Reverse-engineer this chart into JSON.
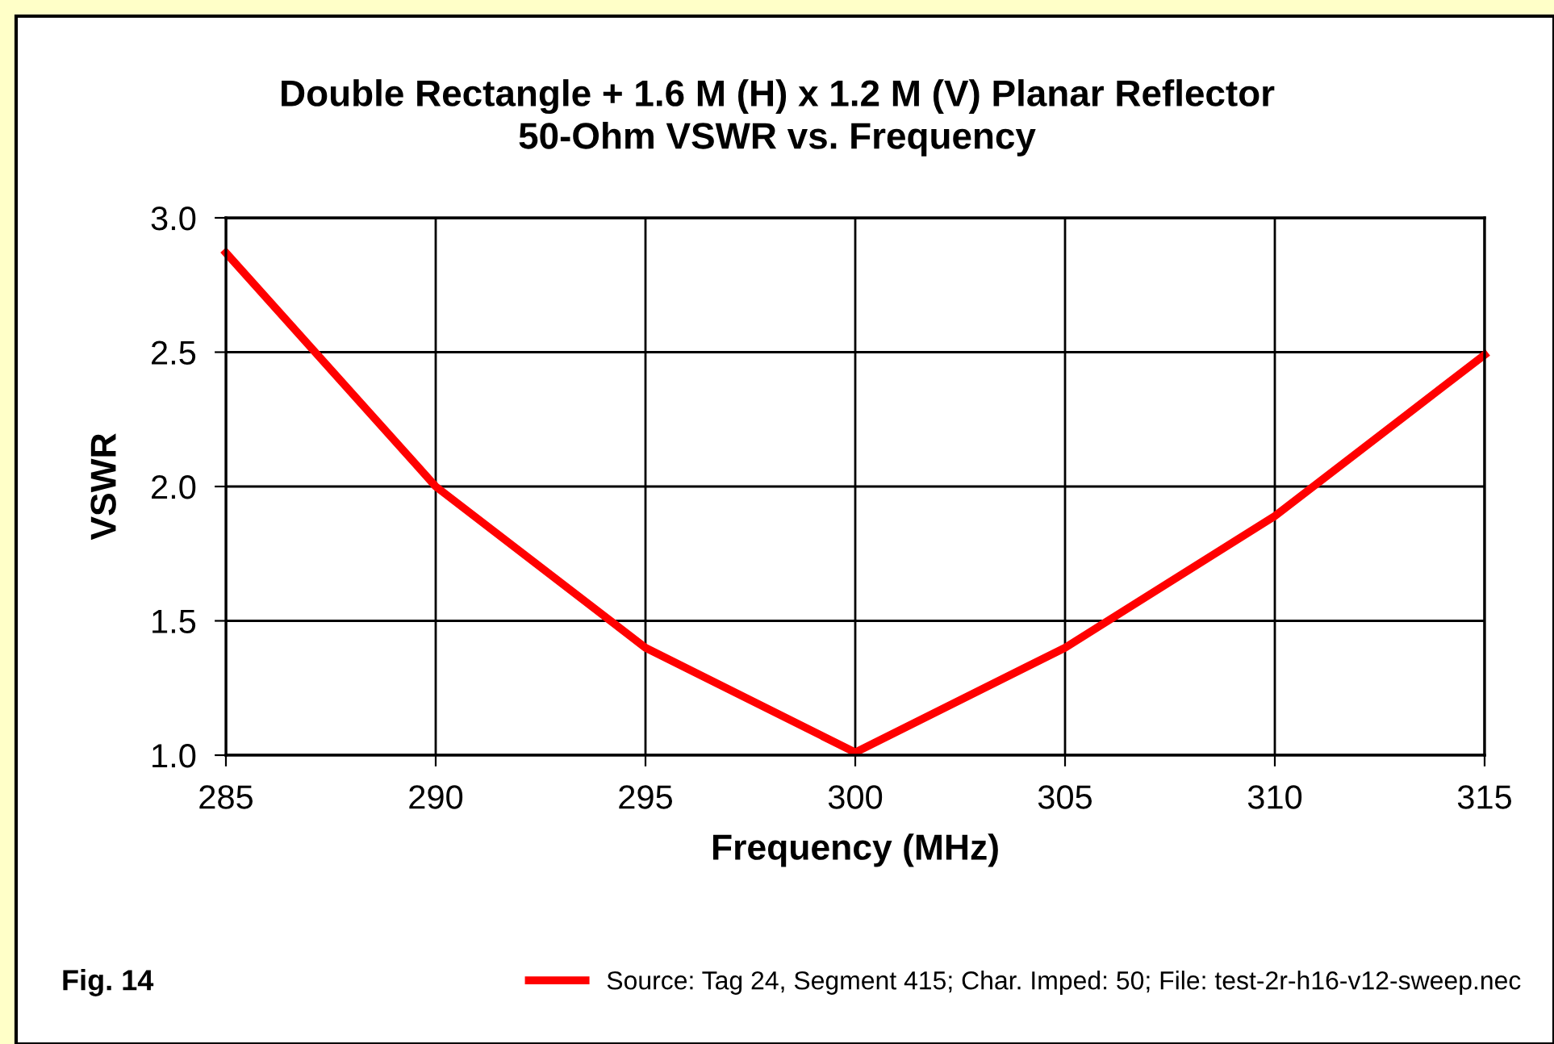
{
  "chart_data": {
    "type": "line",
    "title": "Double Rectangle + 1.6 M (H) x 1.2 M (V) Planar Reflector\n50-Ohm VSWR vs. Frequency",
    "xlabel": "Frequency (MHz)",
    "ylabel": "VSWR",
    "x": [
      285,
      290,
      295,
      300,
      305,
      310,
      315
    ],
    "series": [
      {
        "name": "Source: Tag 24, Segment 415; Char. Imped: 50; File: test-2r-h16-v12-sweep.nec",
        "color": "#ff0000",
        "values": [
          2.87,
          2.0,
          1.4,
          1.01,
          1.4,
          1.89,
          2.49
        ]
      }
    ],
    "xlim": [
      285,
      315
    ],
    "xticks": [
      285,
      290,
      295,
      300,
      305,
      310,
      315
    ],
    "ylim": [
      1.0,
      3.0
    ],
    "yticks": [
      {
        "value": 1.0,
        "label": "1.0"
      },
      {
        "value": 1.5,
        "label": "1.5"
      },
      {
        "value": 2.0,
        "label": "2.0"
      },
      {
        "value": 2.5,
        "label": "2.5"
      },
      {
        "value": 3.0,
        "label": "3.0"
      }
    ],
    "grid": true,
    "legend": "bottom",
    "marker": "none",
    "line_style": "solid",
    "annotations": [
      "Fig. 14"
    ]
  }
}
